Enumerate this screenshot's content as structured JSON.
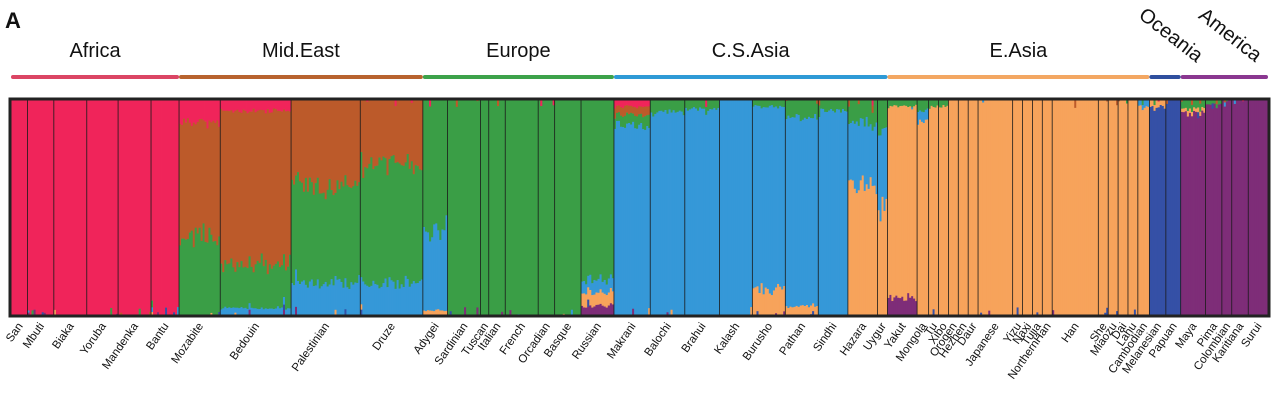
{
  "panel_label": "A",
  "chart_data": {
    "type": "bar",
    "stacked": true,
    "normalized": true,
    "ylim": [
      0,
      1
    ],
    "legend": "none",
    "grid": false,
    "components": [
      {
        "key": "africa",
        "color": "#F0245A"
      },
      {
        "key": "mideast",
        "color": "#BC5A2A"
      },
      {
        "key": "europe",
        "color": "#3A9E46"
      },
      {
        "key": "csasia",
        "color": "#3598D8"
      },
      {
        "key": "easia",
        "color": "#F7A35B"
      },
      {
        "key": "oceania",
        "color": "#3550A6"
      },
      {
        "key": "america",
        "color": "#7E2D78"
      }
    ],
    "regions": [
      {
        "name": "Africa",
        "color": "#DB4564",
        "rotated": false
      },
      {
        "name": "Mid.East",
        "color": "#B8632E",
        "rotated": false
      },
      {
        "name": "Europe",
        "color": "#3DA24A",
        "rotated": false
      },
      {
        "name": "C.S.Asia",
        "color": "#2E9AD6",
        "rotated": false
      },
      {
        "name": "E.Asia",
        "color": "#F3A762",
        "rotated": false
      },
      {
        "name": "Oceania",
        "color": "#2F4F9E",
        "rotated": true
      },
      {
        "name": "America",
        "color": "#8A3790",
        "rotated": true
      }
    ],
    "populations": [
      {
        "name": "San",
        "region": "Africa",
        "mix": {
          "africa": 1.0
        }
      },
      {
        "name": "Mbuti",
        "region": "Africa",
        "mix": {
          "africa": 1.0
        }
      },
      {
        "name": "Biaka",
        "region": "Africa",
        "mix": {
          "africa": 1.0
        }
      },
      {
        "name": "Yoruba",
        "region": "Africa",
        "mix": {
          "africa": 1.0
        }
      },
      {
        "name": "Mandenka",
        "region": "Africa",
        "mix": {
          "africa": 1.0
        }
      },
      {
        "name": "Bantu",
        "region": "Africa",
        "mix": {
          "africa": 1.0
        }
      },
      {
        "name": "Mozabite",
        "region": "Mid.East",
        "mix": {
          "africa": 0.1,
          "mideast": 0.55,
          "europe": 0.35
        }
      },
      {
        "name": "Bedouin",
        "region": "Mid.East",
        "mix": {
          "africa": 0.05,
          "mideast": 0.72,
          "europe": 0.2,
          "csasia": 0.03
        }
      },
      {
        "name": "Palestinian",
        "region": "Mid.East",
        "mix": {
          "mideast": 0.4,
          "europe": 0.45,
          "csasia": 0.15
        }
      },
      {
        "name": "Druze",
        "region": "Mid.East",
        "mix": {
          "mideast": 0.3,
          "europe": 0.55,
          "csasia": 0.15
        }
      },
      {
        "name": "Adygei",
        "region": "Europe",
        "mix": {
          "europe": 0.6,
          "csasia": 0.38,
          "easia": 0.02
        }
      },
      {
        "name": "Sardinian",
        "region": "Europe",
        "mix": {
          "europe": 1.0
        }
      },
      {
        "name": "Tuscan",
        "region": "Europe",
        "mix": {
          "europe": 1.0
        }
      },
      {
        "name": "Italian",
        "region": "Europe",
        "mix": {
          "europe": 1.0
        }
      },
      {
        "name": "French",
        "region": "Europe",
        "mix": {
          "europe": 1.0
        }
      },
      {
        "name": "Orcadian",
        "region": "Europe",
        "mix": {
          "europe": 1.0
        }
      },
      {
        "name": "Basque",
        "region": "Europe",
        "mix": {
          "europe": 1.0
        }
      },
      {
        "name": "Russian",
        "region": "Europe",
        "mix": {
          "europe": 0.84,
          "csasia": 0.06,
          "easia": 0.06,
          "america": 0.04
        }
      },
      {
        "name": "Makrani",
        "region": "C.S.Asia",
        "mix": {
          "africa": 0.03,
          "mideast": 0.04,
          "europe": 0.05,
          "csasia": 0.88
        }
      },
      {
        "name": "Balochi",
        "region": "C.S.Asia",
        "mix": {
          "europe": 0.06,
          "csasia": 0.94
        }
      },
      {
        "name": "Brahui",
        "region": "C.S.Asia",
        "mix": {
          "europe": 0.04,
          "csasia": 0.96
        }
      },
      {
        "name": "Kalash",
        "region": "C.S.Asia",
        "mix": {
          "csasia": 1.0
        }
      },
      {
        "name": "Burusho",
        "region": "C.S.Asia",
        "mix": {
          "europe": 0.03,
          "csasia": 0.85,
          "easia": 0.12
        }
      },
      {
        "name": "Pathan",
        "region": "C.S.Asia",
        "mix": {
          "europe": 0.08,
          "csasia": 0.88,
          "easia": 0.04
        }
      },
      {
        "name": "Sindhi",
        "region": "C.S.Asia",
        "mix": {
          "europe": 0.05,
          "csasia": 0.95
        }
      },
      {
        "name": "Hazara",
        "region": "C.S.Asia",
        "mix": {
          "europe": 0.1,
          "csasia": 0.3,
          "easia": 0.6
        }
      },
      {
        "name": "Uygur",
        "region": "C.S.Asia",
        "mix": {
          "europe": 0.15,
          "csasia": 0.35,
          "easia": 0.5
        }
      },
      {
        "name": "Yakut",
        "region": "E.Asia",
        "mix": {
          "europe": 0.03,
          "easia": 0.89,
          "america": 0.08
        }
      },
      {
        "name": "Mongola",
        "region": "E.Asia",
        "mix": {
          "europe": 0.05,
          "csasia": 0.05,
          "easia": 0.9
        }
      },
      {
        "name": "Tu",
        "region": "E.Asia",
        "mix": {
          "europe": 0.03,
          "easia": 0.97
        }
      },
      {
        "name": "Xibo",
        "region": "E.Asia",
        "mix": {
          "europe": 0.03,
          "easia": 0.97
        }
      },
      {
        "name": "Oroqen",
        "region": "E.Asia",
        "mix": {
          "easia": 1.0
        }
      },
      {
        "name": "Hezhen",
        "region": "E.Asia",
        "mix": {
          "easia": 1.0
        }
      },
      {
        "name": "Daur",
        "region": "E.Asia",
        "mix": {
          "easia": 1.0
        }
      },
      {
        "name": "Japanese",
        "region": "E.Asia",
        "mix": {
          "easia": 1.0
        }
      },
      {
        "name": "Yizu",
        "region": "E.Asia",
        "mix": {
          "easia": 1.0
        }
      },
      {
        "name": "Naxi",
        "region": "E.Asia",
        "mix": {
          "easia": 1.0
        }
      },
      {
        "name": "Tujia",
        "region": "E.Asia",
        "mix": {
          "easia": 1.0
        }
      },
      {
        "name": "NorthernHan",
        "region": "E.Asia",
        "mix": {
          "easia": 1.0
        }
      },
      {
        "name": "Han",
        "region": "E.Asia",
        "mix": {
          "easia": 1.0
        }
      },
      {
        "name": "She",
        "region": "E.Asia",
        "mix": {
          "easia": 1.0
        }
      },
      {
        "name": "Miaozu",
        "region": "E.Asia",
        "mix": {
          "easia": 1.0
        }
      },
      {
        "name": "Dai",
        "region": "E.Asia",
        "mix": {
          "easia": 1.0
        }
      },
      {
        "name": "Lahu",
        "region": "E.Asia",
        "mix": {
          "easia": 1.0
        }
      },
      {
        "name": "Cambodian",
        "region": "E.Asia",
        "mix": {
          "csasia": 0.03,
          "easia": 0.97
        }
      },
      {
        "name": "Melanesian",
        "region": "Oceania",
        "mix": {
          "easia": 0.03,
          "oceania": 0.97
        }
      },
      {
        "name": "Papuan",
        "region": "Oceania",
        "mix": {
          "oceania": 1.0
        }
      },
      {
        "name": "Maya",
        "region": "America",
        "mix": {
          "europe": 0.04,
          "easia": 0.02,
          "america": 0.94
        }
      },
      {
        "name": "Pima",
        "region": "America",
        "mix": {
          "europe": 0.02,
          "america": 0.98
        }
      },
      {
        "name": "Colombian",
        "region": "America",
        "mix": {
          "america": 1.0
        }
      },
      {
        "name": "Karitiana",
        "region": "America",
        "mix": {
          "america": 1.0
        }
      },
      {
        "name": "Surui",
        "region": "America",
        "mix": {
          "america": 1.0
        }
      }
    ]
  }
}
